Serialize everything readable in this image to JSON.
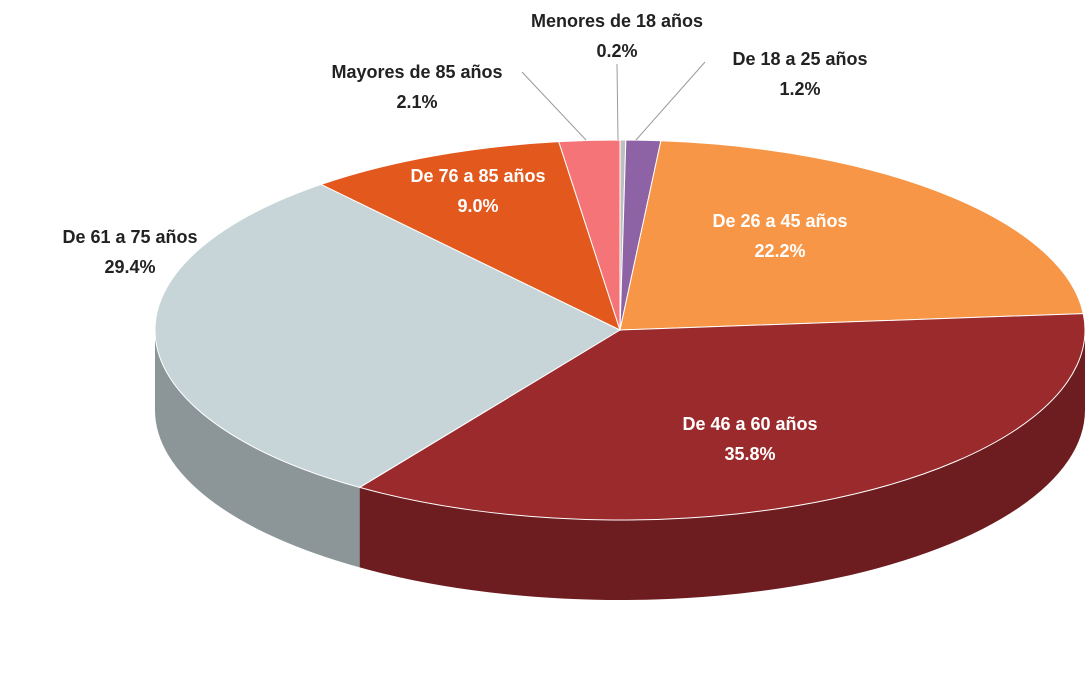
{
  "chart_data": {
    "type": "pie",
    "categories": [
      "Menores de 18 años",
      "De 18 a 25 años",
      "De 26 a 45 años",
      "De 46 a 60 años",
      "De 61 a 75 años",
      "De 76 a 85 años",
      "Mayores de 85 años"
    ],
    "values": [
      0.2,
      1.2,
      22.2,
      35.8,
      29.4,
      9.0,
      2.1
    ],
    "value_labels": [
      "0.2%",
      "1.2%",
      "22.2%",
      "35.8%",
      "29.4%",
      "9.0%",
      "2.1%"
    ],
    "colors": [
      "#bfbfbf",
      "#8e63a6",
      "#f79646",
      "#9b2a2c",
      "#c8d5d8",
      "#e2581d",
      "#f47477"
    ]
  }
}
